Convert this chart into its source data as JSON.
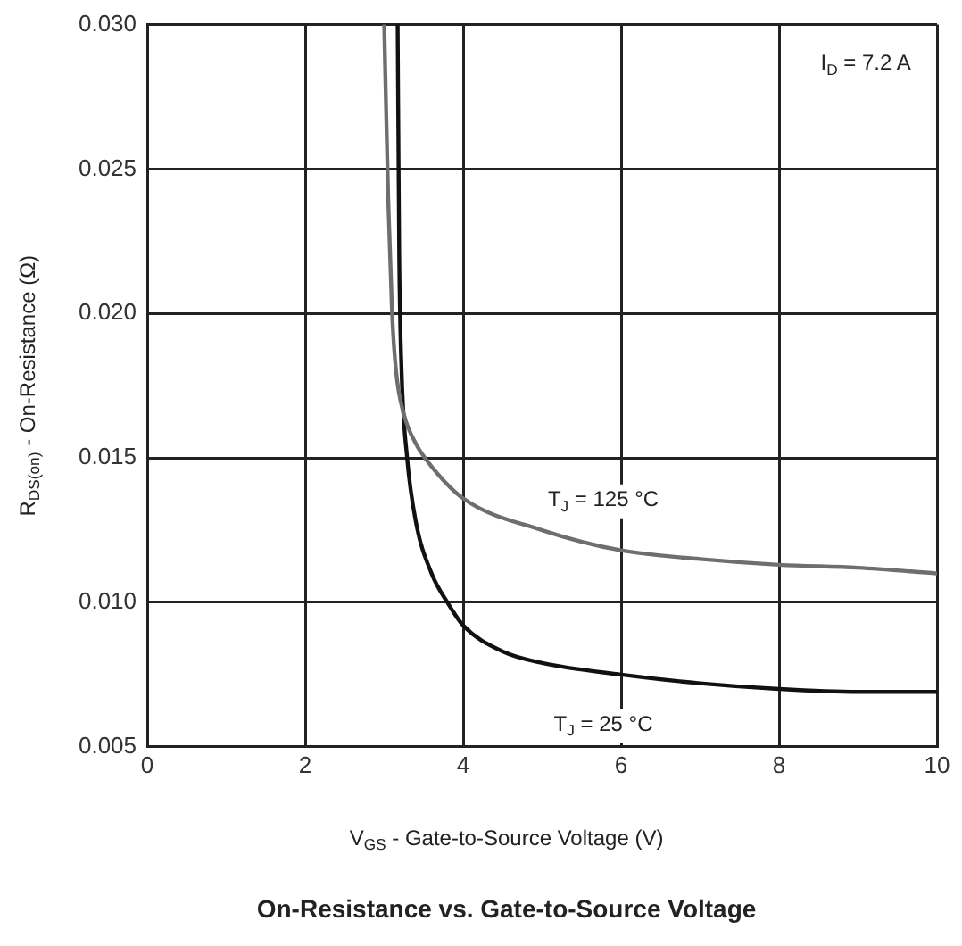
{
  "chart_data": {
    "type": "line",
    "title": "On-Resistance vs. Gate-to-Source Voltage",
    "xlabel": "V$_{GS}$ - Gate-to-Source Voltage (V)",
    "ylabel": "R$_{DS(on)}$ - On-Resistance (Ω)",
    "annotations": [
      "I$_{D}$ = 7.2 A"
    ],
    "series": [
      {
        "name": "T$_{J}$ = 125 °C",
        "color": "#6e6e6e",
        "x": [
          3.0,
          3.05,
          3.1,
          3.15,
          3.25,
          3.4,
          3.6,
          4,
          5,
          6,
          7,
          8,
          9,
          10
        ],
        "values": [
          0.03,
          0.024,
          0.02,
          0.018,
          0.0165,
          0.0155,
          0.0147,
          0.0136,
          0.0125,
          0.0118,
          0.0115,
          0.0113,
          0.0112,
          0.011
        ]
      },
      {
        "name": "T$_{J}$ = 25 °C",
        "color": "#111111",
        "x": [
          3.17,
          3.19,
          3.22,
          3.29,
          3.4,
          3.6,
          3.8,
          4,
          4.5,
          5,
          6,
          7,
          8,
          9,
          10
        ],
        "values": [
          0.03,
          0.022,
          0.018,
          0.015,
          0.0128,
          0.011,
          0.01,
          0.0092,
          0.0083,
          0.0079,
          0.0075,
          0.0072,
          0.007,
          0.0069,
          0.0069
        ]
      }
    ],
    "xlim": [
      0,
      10
    ],
    "xticks": [
      0,
      2,
      4,
      6,
      8,
      10
    ],
    "ylim": [
      0.005,
      0.03
    ],
    "yticks": [
      0.005,
      {
        "value": 0.01,
        "label": "0.010"
      },
      0.015,
      {
        "value": 0.02,
        "label": "0.020"
      },
      0.025,
      {
        "value": 0.03,
        "label": "0.030"
      }
    ],
    "grid": true,
    "legend": false,
    "marker": "none",
    "line_style": "solid"
  }
}
